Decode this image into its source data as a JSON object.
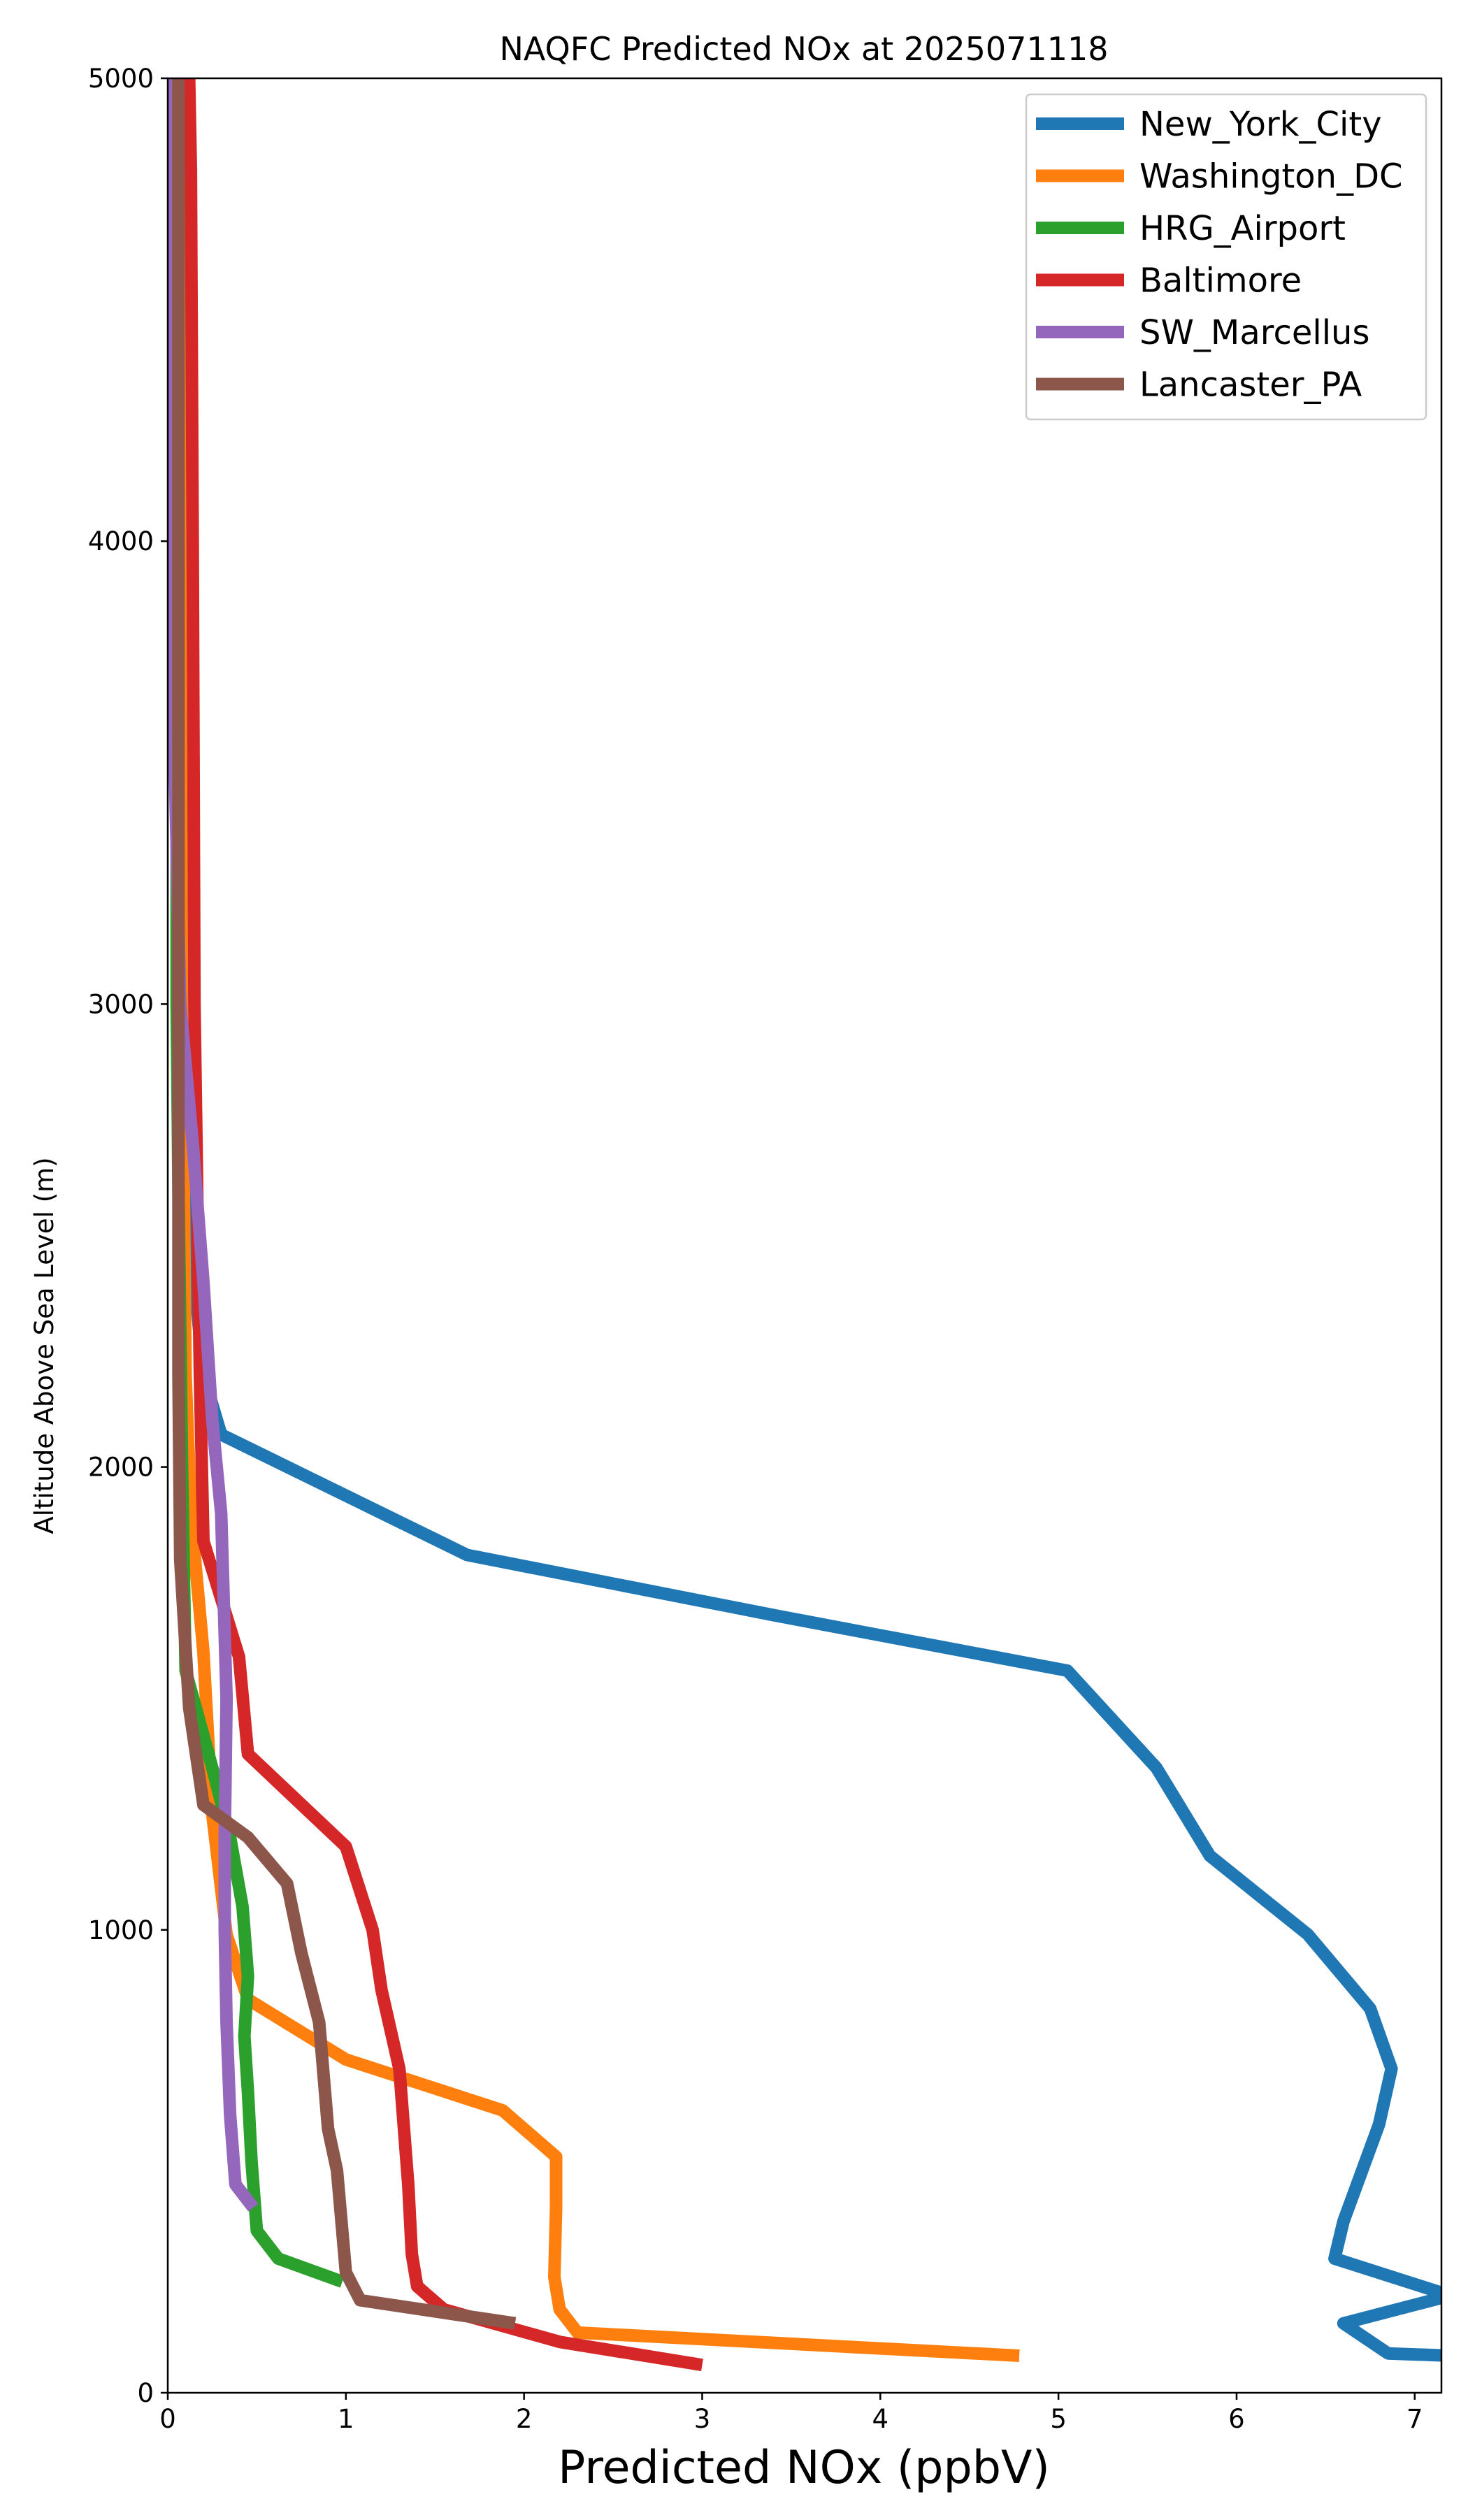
{
  "chart_data": {
    "type": "line",
    "title": "NAQFC Predicted NOx at 2025071118",
    "xlabel": "Predicted NOx (ppbV)",
    "ylabel": "Altitude Above Sea Level (m)",
    "xlim": [
      0,
      7.15
    ],
    "ylim": [
      0,
      5000
    ],
    "xticks": [
      0,
      1,
      2,
      3,
      4,
      5,
      6,
      7
    ],
    "yticks": [
      0,
      1000,
      2000,
      3000,
      4000,
      5000
    ],
    "grid": false,
    "legend_position": "top-right",
    "series": [
      {
        "name": "New_York_City",
        "color": "#1f77b4",
        "points": [
          [
            7.2,
            80
          ],
          [
            6.85,
            85
          ],
          [
            6.6,
            150
          ],
          [
            7.2,
            210
          ],
          [
            6.55,
            290
          ],
          [
            6.6,
            370
          ],
          [
            6.8,
            580
          ],
          [
            6.87,
            700
          ],
          [
            6.75,
            830
          ],
          [
            6.4,
            990
          ],
          [
            5.85,
            1160
          ],
          [
            5.55,
            1350
          ],
          [
            5.05,
            1560
          ],
          [
            3.4,
            1680
          ],
          [
            1.68,
            1810
          ],
          [
            0.3,
            2070
          ],
          [
            0.2,
            2200
          ],
          [
            0.15,
            2400
          ],
          [
            0.12,
            3000
          ],
          [
            0.1,
            4000
          ],
          [
            0.1,
            5000
          ]
        ]
      },
      {
        "name": "Washington_DC",
        "color": "#ff7f0e",
        "points": [
          [
            4.78,
            80
          ],
          [
            2.3,
            130
          ],
          [
            2.2,
            180
          ],
          [
            2.17,
            250
          ],
          [
            2.18,
            400
          ],
          [
            2.18,
            510
          ],
          [
            1.88,
            610
          ],
          [
            1.0,
            720
          ],
          [
            0.45,
            850
          ],
          [
            0.33,
            990
          ],
          [
            0.25,
            1250
          ],
          [
            0.2,
            1600
          ],
          [
            0.13,
            1900
          ],
          [
            0.1,
            2200
          ],
          [
            0.08,
            3000
          ],
          [
            0.07,
            4000
          ],
          [
            0.07,
            5000
          ]
        ]
      },
      {
        "name": "HRG_Airport",
        "color": "#2ca02c",
        "points": [
          [
            0.98,
            240
          ],
          [
            0.62,
            290
          ],
          [
            0.5,
            350
          ],
          [
            0.47,
            500
          ],
          [
            0.45,
            650
          ],
          [
            0.43,
            770
          ],
          [
            0.45,
            900
          ],
          [
            0.42,
            1050
          ],
          [
            0.35,
            1200
          ],
          [
            0.25,
            1350
          ],
          [
            0.1,
            1560
          ],
          [
            0.08,
            2000
          ],
          [
            0.06,
            2600
          ],
          [
            0.05,
            3000
          ],
          [
            0.05,
            4000
          ],
          [
            0.05,
            5000
          ]
        ]
      },
      {
        "name": "Baltimore",
        "color": "#d62728",
        "points": [
          [
            3.0,
            60
          ],
          [
            2.2,
            110
          ],
          [
            1.55,
            180
          ],
          [
            1.4,
            230
          ],
          [
            1.37,
            300
          ],
          [
            1.35,
            450
          ],
          [
            1.3,
            700
          ],
          [
            1.2,
            870
          ],
          [
            1.15,
            1000
          ],
          [
            1.0,
            1180
          ],
          [
            0.45,
            1380
          ],
          [
            0.4,
            1590
          ],
          [
            0.2,
            1840
          ],
          [
            0.18,
            2200
          ],
          [
            0.15,
            3000
          ],
          [
            0.14,
            4000
          ],
          [
            0.13,
            4800
          ],
          [
            0.12,
            5000
          ]
        ]
      },
      {
        "name": "SW_Marcellus",
        "color": "#9467bd",
        "points": [
          [
            0.48,
            400
          ],
          [
            0.38,
            450
          ],
          [
            0.35,
            600
          ],
          [
            0.33,
            800
          ],
          [
            0.32,
            1000
          ],
          [
            0.32,
            1200
          ],
          [
            0.33,
            1500
          ],
          [
            0.3,
            1900
          ],
          [
            0.25,
            2100
          ],
          [
            0.2,
            2400
          ],
          [
            0.14,
            2700
          ],
          [
            0.07,
            3000
          ],
          [
            0.04,
            3500
          ],
          [
            0.03,
            5000
          ]
        ]
      },
      {
        "name": "Lancaster_PA",
        "color": "#8c564b",
        "points": [
          [
            1.95,
            150
          ],
          [
            1.08,
            200
          ],
          [
            1.0,
            260
          ],
          [
            0.95,
            480
          ],
          [
            0.9,
            570
          ],
          [
            0.85,
            800
          ],
          [
            0.75,
            950
          ],
          [
            0.67,
            1100
          ],
          [
            0.45,
            1200
          ],
          [
            0.2,
            1270
          ],
          [
            0.12,
            1480
          ],
          [
            0.07,
            1800
          ],
          [
            0.06,
            2200
          ],
          [
            0.06,
            2600
          ],
          [
            0.06,
            3000
          ],
          [
            0.06,
            4000
          ],
          [
            0.06,
            5000
          ]
        ]
      }
    ]
  }
}
